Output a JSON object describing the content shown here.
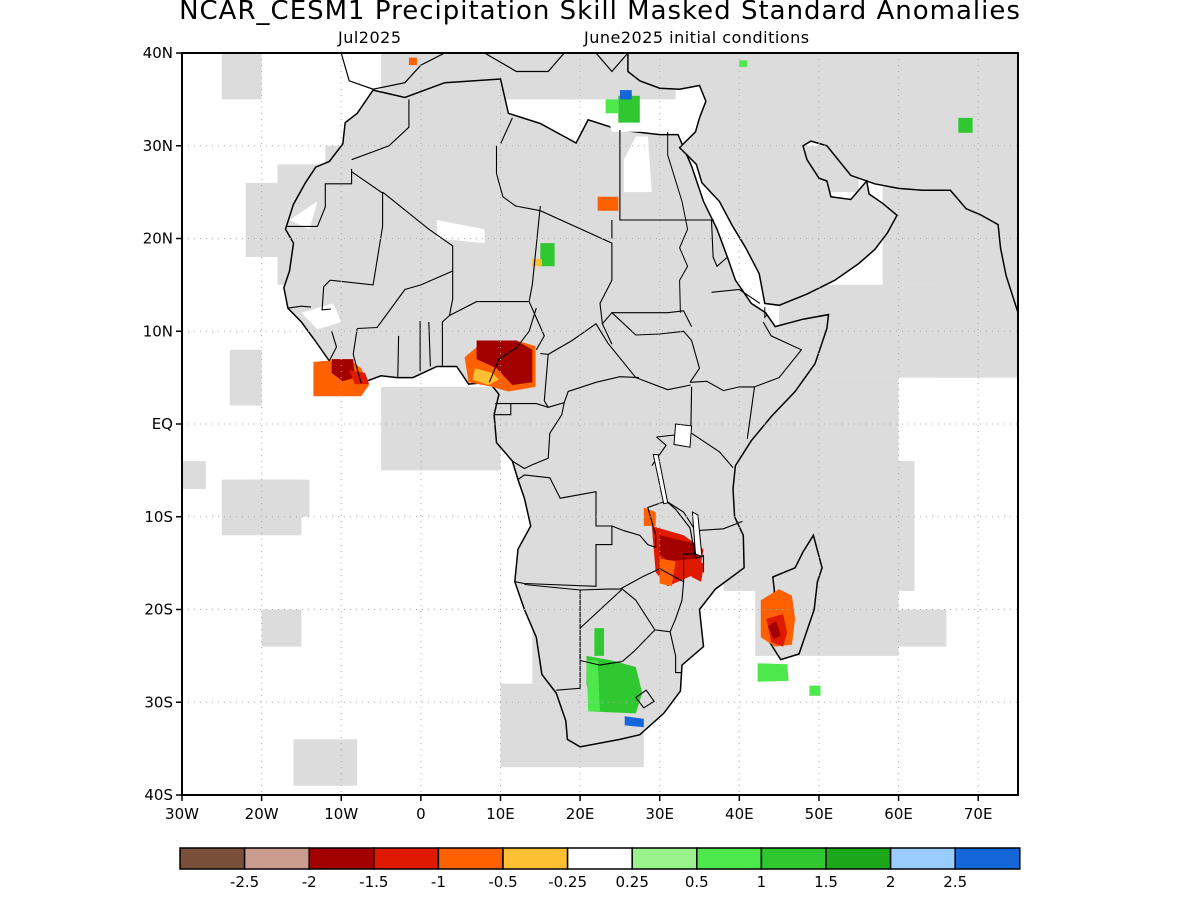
{
  "header": {
    "title": "NCAR_CESM1 Precipitation Skill Masked Standard Anomalies",
    "subtitle_left": "Jul2025",
    "subtitle_right": "June2025 initial conditions"
  },
  "map": {
    "region": "Africa",
    "lon_range": [
      -30,
      75
    ],
    "lat_range": [
      -40,
      40
    ],
    "grid": true,
    "lon_ticks": [
      "30W",
      "20W",
      "10W",
      "0",
      "10E",
      "20E",
      "30E",
      "40E",
      "50E",
      "60E",
      "70E"
    ],
    "lat_ticks": [
      "40N",
      "30N",
      "20N",
      "10N",
      "EQ",
      "10S",
      "20S",
      "30S",
      "40S"
    ],
    "colors": {
      "land_mask": "#dcdcdc",
      "coast": "#000000",
      "grid": "#aaaaaa"
    },
    "anomaly_regions": [
      {
        "area": "Liberia coast",
        "sign": "dry",
        "level": "-1 to -2"
      },
      {
        "area": "Nigeria/Cameroon",
        "sign": "dry",
        "level": "-1 to -2"
      },
      {
        "area": "Malawi/Zambia/Mozambique",
        "sign": "dry",
        "level": "-1 to -2"
      },
      {
        "area": "Madagascar west",
        "sign": "dry",
        "level": "-1 to -2"
      },
      {
        "area": "South Africa interior",
        "sign": "wet",
        "level": "0.5 to 2"
      },
      {
        "area": "Libya coast",
        "sign": "wet",
        "level": "0.5 to 2.5"
      },
      {
        "area": "Pakistan/Afghanistan",
        "sign": "wet",
        "level": "0.5 to 1.5"
      }
    ]
  },
  "legend": {
    "colors": [
      "#7a4f3a",
      "#c99c8f",
      "#a30000",
      "#df1a00",
      "#ff6000",
      "#ffbf33",
      "#ffffff",
      "#99f28c",
      "#4ce84c",
      "#30c830",
      "#1aa81a",
      "#99ccff",
      "#1466d9"
    ],
    "labels": [
      "-2.5",
      "-2",
      "-1.5",
      "-1",
      "-0.5",
      "-0.25",
      "0.25",
      "0.5",
      "1",
      "1.5",
      "2",
      "2.5"
    ]
  }
}
